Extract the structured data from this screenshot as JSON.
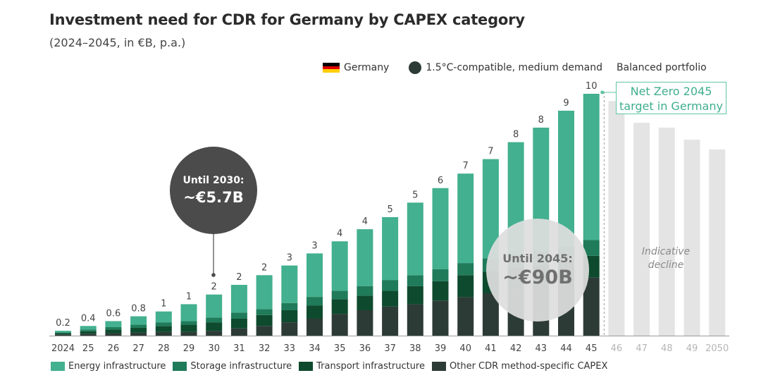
{
  "title": "Investment need for CDR for Germany by CAPEX category",
  "subtitle": "(2024–2045, in €B, p.a.)",
  "legend_top": {
    "germany": "Germany",
    "scenario": "1.5°C-compatible, medium demand",
    "portfolio": "Balanced portfolio"
  },
  "bubble_2030": {
    "label": "Until 2030:",
    "value": "~€5.7B"
  },
  "bubble_2045": {
    "label": "Until 2045:",
    "value": "~€90B"
  },
  "net_zero_label": "Net Zero 2045 target in Germany",
  "decline_label": "Indicative decline",
  "colors": {
    "energy": "#43b08f",
    "storage": "#1f7b5a",
    "transport": "#0e4a2e",
    "other": "#2d3b36",
    "projection": "#e4e4e4",
    "flag_black": "#000000",
    "flag_red": "#dd0000",
    "flag_gold": "#ffce00"
  },
  "chart_data": {
    "type": "bar",
    "stacked": true,
    "categories": [
      "2024",
      "25",
      "26",
      "27",
      "28",
      "29",
      "30",
      "31",
      "32",
      "33",
      "34",
      "35",
      "36",
      "37",
      "38",
      "39",
      "40",
      "41",
      "42",
      "43",
      "44",
      "45"
    ],
    "total_labels": [
      "0.2",
      "0.4",
      "0.6",
      "0.8",
      "1",
      "1",
      "2",
      "2",
      "2",
      "3",
      "3",
      "4",
      "4",
      "5",
      "5",
      "6",
      "7",
      "7",
      "8",
      "8",
      "9",
      "10"
    ],
    "totals": [
      0.2,
      0.4,
      0.6,
      0.8,
      1.0,
      1.3,
      1.7,
      2.1,
      2.5,
      2.9,
      3.4,
      3.9,
      4.4,
      4.9,
      5.5,
      6.1,
      6.7,
      7.3,
      8.0,
      8.6,
      9.3,
      10.0
    ],
    "series": [
      {
        "name": "Other CDR method-specific CAPEX",
        "values": [
          0.05,
          0.08,
          0.1,
          0.12,
          0.15,
          0.15,
          0.2,
          0.3,
          0.4,
          0.55,
          0.7,
          0.9,
          1.05,
          1.2,
          1.3,
          1.45,
          1.6,
          1.75,
          1.9,
          2.0,
          2.2,
          2.4
        ]
      },
      {
        "name": "Transport infrastructure",
        "values": [
          0.05,
          0.1,
          0.15,
          0.2,
          0.25,
          0.3,
          0.35,
          0.4,
          0.45,
          0.5,
          0.55,
          0.6,
          0.6,
          0.65,
          0.75,
          0.8,
          0.9,
          0.9,
          0.9,
          0.9,
          0.9,
          0.9
        ]
      },
      {
        "name": "Storage infrastructure",
        "values": [
          0.03,
          0.07,
          0.1,
          0.13,
          0.15,
          0.15,
          0.2,
          0.25,
          0.25,
          0.3,
          0.35,
          0.35,
          0.4,
          0.45,
          0.45,
          0.5,
          0.5,
          0.55,
          0.55,
          0.6,
          0.6,
          0.65
        ]
      },
      {
        "name": "Energy infrastructure",
        "values": [
          0.07,
          0.15,
          0.25,
          0.35,
          0.45,
          0.7,
          0.95,
          1.15,
          1.4,
          1.55,
          1.8,
          2.05,
          2.35,
          2.6,
          3.0,
          3.35,
          3.7,
          4.1,
          4.65,
          5.1,
          5.6,
          6.05
        ]
      }
    ],
    "projection": {
      "categories": [
        "46",
        "47",
        "48",
        "49",
        "2050"
      ],
      "values": [
        9.7,
        8.8,
        8.6,
        8.1,
        7.7
      ]
    },
    "ylim": [
      0,
      10.5
    ]
  }
}
